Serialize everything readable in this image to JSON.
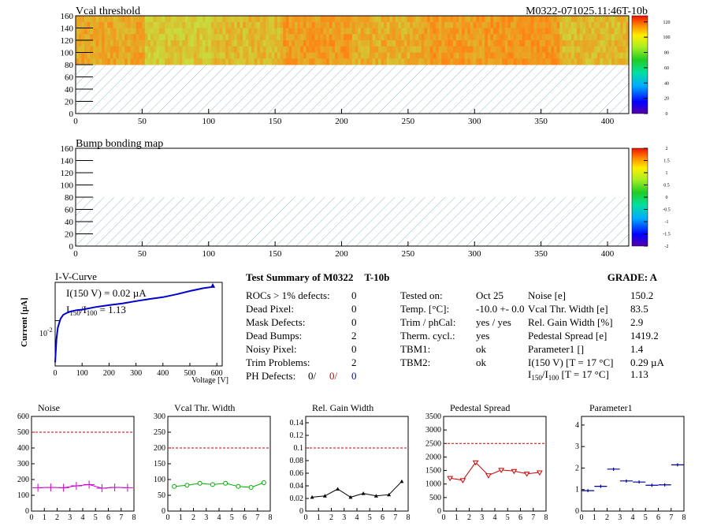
{
  "header": {
    "left_title": "Vcal threshold",
    "right_title": "M0322-071025.11:46T-10b"
  },
  "bump_title": "Bump bonding map",
  "iv": {
    "title": "I-V-Curve",
    "note1": "I(150 V) = 0.02 µA",
    "note2_main": "I",
    "note2_sub1": "150",
    "note2_mid": "/I",
    "note2_sub2": "100",
    "note2_tail": " = 1.13",
    "xlabel": "Voltage [V]",
    "ylabel": "Current [µA]",
    "ytick": "10",
    "ytick_exp": "-2",
    "xticks": [
      "0",
      "100",
      "200",
      "300",
      "400",
      "500",
      "600"
    ]
  },
  "summary": {
    "title": "Test Summary of M0322",
    "title_code": "T-10b",
    "grade": "GRADE:  A",
    "left": [
      {
        "label": "ROCs > 1% defects:",
        "value": "0"
      },
      {
        "label": "Dead Pixel:",
        "value": "0"
      },
      {
        "label": "Mask Defects:",
        "value": "0"
      },
      {
        "label": "Dead Bumps:",
        "value": "2"
      },
      {
        "label": "Noisy Pixel:",
        "value": "0"
      },
      {
        "label": "Trim Problems:",
        "value": "2"
      }
    ],
    "ph_label": "PH Defects:",
    "ph_v1": "0/",
    "ph_v2": "0/",
    "ph_v3": "0",
    "mid": [
      {
        "label": "Tested on:",
        "value": "Oct 25"
      },
      {
        "label": "Temp. [°C]:",
        "value": "-10.0 +- 0.0"
      },
      {
        "label": "Trim / phCal:",
        "value": "yes / yes"
      },
      {
        "label": "Therm. cycl.:",
        "value": "yes"
      },
      {
        "label": "TBM1:",
        "value": "ok"
      },
      {
        "label": "TBM2:",
        "value": "ok"
      }
    ],
    "right": [
      {
        "label": "Noise [e]",
        "value": "150.2"
      },
      {
        "label": "Vcal Thr. Width [e]",
        "value": "83.5"
      },
      {
        "label": "Rel. Gain Width [%]",
        "value": "2.9"
      },
      {
        "label": "Pedestal Spread [e]",
        "value": "1419.2"
      },
      {
        "label": "Parameter1 []",
        "value": "1.4"
      },
      {
        "label": "I(150 V) [T = 17 °C]",
        "value": "0.29 µA"
      }
    ],
    "ratio_label_main": "I",
    "ratio_sub1": "150",
    "ratio_mid": "/I",
    "ratio_sub2": "100",
    "ratio_tail": "  [T = 17 °C]",
    "ratio_value": "1.13"
  },
  "colors": {
    "heat_low": "#f7a01e",
    "heat_high": "#c8e43a",
    "hatch": "#9ab8c8",
    "noise": "#cc00cc",
    "vcal": "#00aa00",
    "relgain": "#000000",
    "pedestal": "#cc0000",
    "param": "#000099",
    "iv": "#0000cc",
    "ref": "#cc0000"
  },
  "chart_data": [
    {
      "type": "heatmap",
      "title": "Vcal threshold",
      "xlim": [
        0,
        416
      ],
      "ylim": [
        0,
        160
      ],
      "xticks": [
        0,
        50,
        100,
        150,
        200,
        250,
        300,
        350,
        400
      ],
      "yticks": [
        0,
        20,
        40,
        60,
        80,
        100,
        120,
        140,
        160
      ],
      "colorbar_ticks": [
        0,
        20,
        40,
        60,
        80,
        100,
        120
      ],
      "roc_mean_values": [
        105,
        96,
        100,
        108,
        103,
        108,
        110,
        100,
        112,
        95,
        104,
        107,
        99,
        108,
        103,
        106
      ]
    },
    {
      "type": "heatmap",
      "title": "Bump bonding map",
      "xlim": [
        0,
        416
      ],
      "ylim": [
        0,
        160
      ],
      "xticks": [
        0,
        50,
        100,
        150,
        200,
        250,
        300,
        350,
        400
      ],
      "yticks": [
        0,
        20,
        40,
        60,
        80,
        100,
        120,
        140,
        160
      ],
      "colorbar_ticks": [
        "-2",
        "-1.5",
        "-1",
        "-0.5",
        "0",
        "0.5",
        "1",
        "1.5",
        "2"
      ]
    },
    {
      "type": "line",
      "title": "I-V-Curve",
      "xlabel": "Voltage [V]",
      "ylabel": "Current [µA]",
      "log_y": true,
      "xlim": [
        0,
        620
      ],
      "points": [
        [
          0,
          0.0012
        ],
        [
          5,
          0.004
        ],
        [
          10,
          0.007
        ],
        [
          20,
          0.011
        ],
        [
          30,
          0.0135
        ],
        [
          50,
          0.0155
        ],
        [
          80,
          0.017
        ],
        [
          100,
          0.0175
        ],
        [
          150,
          0.02
        ],
        [
          200,
          0.022
        ],
        [
          250,
          0.024
        ],
        [
          300,
          0.027
        ],
        [
          350,
          0.03
        ],
        [
          400,
          0.033
        ],
        [
          450,
          0.038
        ],
        [
          500,
          0.045
        ],
        [
          550,
          0.052
        ],
        [
          580,
          0.055
        ],
        [
          585,
          0.06
        ]
      ]
    },
    {
      "type": "line",
      "title": "Noise",
      "xlim": [
        0,
        8
      ],
      "ylim": [
        0,
        600
      ],
      "yticks": [
        "0",
        "100",
        "200",
        "300",
        "400",
        "500",
        "600"
      ],
      "xticks": [
        "0",
        "1",
        "2",
        "3",
        "4",
        "5",
        "6",
        "7",
        "8"
      ],
      "reference": 500,
      "x": [
        0.5,
        1.5,
        2.5,
        3.5,
        4.5,
        5.5,
        6.5,
        7.5
      ],
      "values": [
        148,
        150,
        148,
        160,
        168,
        145,
        150,
        148
      ]
    },
    {
      "type": "line",
      "title": "Vcal Thr. Width",
      "xlim": [
        0,
        8
      ],
      "ylim": [
        0,
        300
      ],
      "yticks": [
        "0",
        "50",
        "100",
        "150",
        "200",
        "250",
        "300"
      ],
      "xticks": [
        "0",
        "1",
        "2",
        "3",
        "4",
        "5",
        "6",
        "7",
        "8"
      ],
      "reference": 200,
      "x": [
        0.5,
        1.5,
        2.5,
        3.5,
        4.5,
        5.5,
        6.5,
        7.5
      ],
      "values": [
        78,
        82,
        88,
        84,
        88,
        78,
        75,
        90
      ]
    },
    {
      "type": "line",
      "title": "Rel. Gain Width",
      "xlim": [
        0,
        8
      ],
      "ylim": [
        0,
        0.15
      ],
      "yticks": [
        "0",
        "0.02",
        "0.04",
        "0.06",
        "0.08",
        "0.1",
        "0.12",
        "0.14"
      ],
      "xticks": [
        "0",
        "1",
        "2",
        "3",
        "4",
        "5",
        "6",
        "7",
        "8"
      ],
      "reference": 0.1,
      "x": [
        0.5,
        1.5,
        2.5,
        3.5,
        4.5,
        5.5,
        6.5,
        7.5
      ],
      "values": [
        0.022,
        0.024,
        0.035,
        0.022,
        0.028,
        0.024,
        0.026,
        0.047
      ]
    },
    {
      "type": "line",
      "title": "Pedestal Spread",
      "xlim": [
        0,
        8
      ],
      "ylim": [
        0,
        3500
      ],
      "yticks": [
        "0",
        "500",
        "1000",
        "1500",
        "2000",
        "2500",
        "3000",
        "3500"
      ],
      "xticks": [
        "0",
        "1",
        "2",
        "3",
        "4",
        "5",
        "6",
        "7",
        "8"
      ],
      "reference": 2500,
      "x": [
        0.5,
        1.5,
        2.5,
        3.5,
        4.5,
        5.5,
        6.5,
        7.5
      ],
      "values": [
        1220,
        1140,
        1800,
        1320,
        1520,
        1480,
        1380,
        1430
      ]
    },
    {
      "type": "scatter",
      "title": "Parameter1",
      "xlim": [
        0,
        8
      ],
      "ylim": [
        0,
        4.4
      ],
      "yticks": [
        "0",
        "1",
        "2",
        "3",
        "4"
      ],
      "xticks": [
        "0",
        "1",
        "2",
        "3",
        "4",
        "5",
        "6",
        "7",
        "8"
      ],
      "x": [
        0.5,
        1.5,
        2.5,
        3.5,
        4.5,
        5.5,
        6.5,
        7.5
      ],
      "values": [
        0.95,
        1.15,
        1.95,
        1.4,
        1.35,
        1.2,
        1.22,
        2.15
      ]
    }
  ]
}
